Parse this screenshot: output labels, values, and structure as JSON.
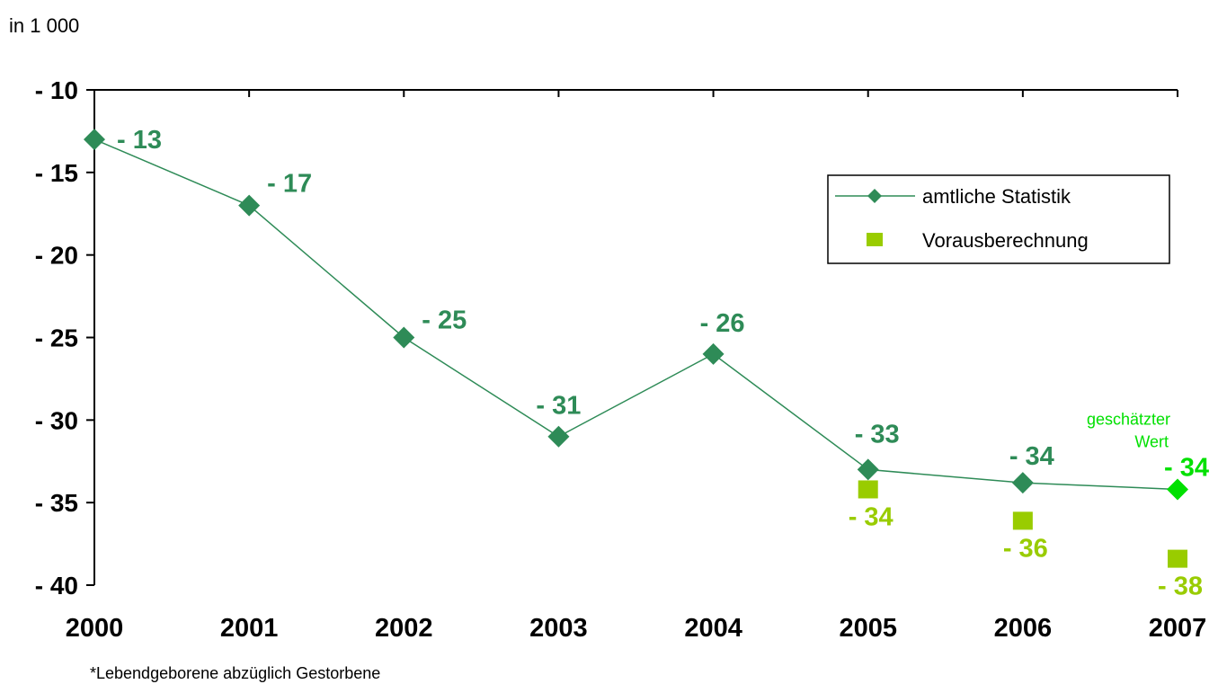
{
  "chart_data": {
    "type": "line",
    "unit_label": "in 1 000",
    "footnote": "*Lebendgeborene abzüglich Gestorbene",
    "categories": [
      "2000",
      "2001",
      "2002",
      "2003",
      "2004",
      "2005",
      "2006",
      "2007"
    ],
    "ylim": [
      -40,
      -10
    ],
    "yticks": [
      -10,
      -15,
      -20,
      -25,
      -30,
      -35,
      -40
    ],
    "ytick_labels": [
      "- 10",
      "- 15",
      "- 20",
      "- 25",
      "- 30",
      "- 35",
      "- 40"
    ],
    "grid": false,
    "legend_position": "top-right",
    "series": [
      {
        "name": "amtliche Statistik",
        "marker": "diamond",
        "line": true,
        "color": "#2e8b57",
        "estimate_color": "#00e000",
        "values": [
          -13,
          -17,
          -25,
          -31,
          -26,
          -33,
          -33.8,
          -34.2
        ],
        "labels": [
          "- 13",
          "- 17",
          "- 25",
          "- 31",
          "- 26",
          "- 33",
          "- 34",
          "- 34"
        ],
        "estimated": [
          false,
          false,
          false,
          false,
          false,
          false,
          false,
          true
        ]
      },
      {
        "name": "Vorausberechnung",
        "marker": "square",
        "line": false,
        "color": "#99cc00",
        "values": [
          null,
          null,
          null,
          null,
          null,
          -34.2,
          -36.1,
          -38.4
        ],
        "labels": [
          null,
          null,
          null,
          null,
          null,
          "- 34",
          "- 36",
          "- 38"
        ]
      }
    ],
    "annotations": [
      {
        "text": "geschätzter Wert",
        "category": "2007",
        "series": "amtliche Statistik"
      }
    ]
  }
}
